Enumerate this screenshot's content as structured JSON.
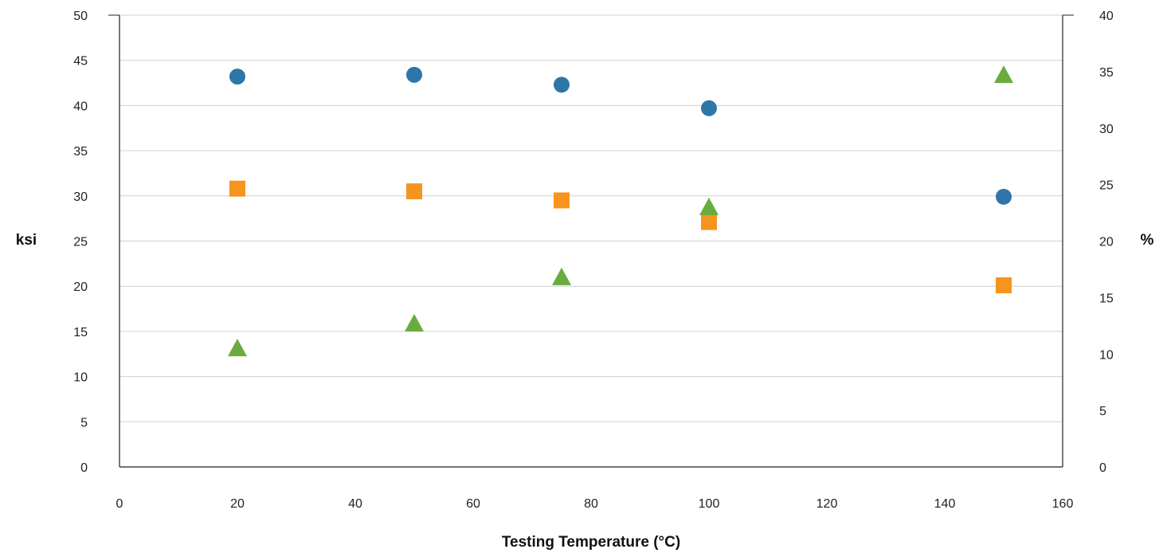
{
  "chart_data": {
    "type": "scatter",
    "title": "",
    "xlabel": "Testing Temperature (°C)",
    "ylabel_left": "ksi",
    "ylabel_right": "%",
    "xlim": [
      0,
      160
    ],
    "ylim_left": [
      0,
      50
    ],
    "ylim_right": [
      0,
      40
    ],
    "x_ticks": [
      "0",
      "20",
      "40",
      "60",
      "80",
      "100",
      "120",
      "140",
      "160"
    ],
    "y_left_ticks": [
      "0",
      "5",
      "10",
      "15",
      "20",
      "25",
      "30",
      "35",
      "40",
      "45",
      "50"
    ],
    "y_right_ticks": [
      "0",
      "5",
      "10",
      "15",
      "20",
      "25",
      "30",
      "35",
      "40"
    ],
    "grid": "horizontal",
    "legend": "none",
    "series": [
      {
        "marker": "circle",
        "color": "#2e75a8",
        "axis": "left",
        "points": [
          [
            20,
            43.2
          ],
          [
            50,
            43.4
          ],
          [
            75,
            42.3
          ],
          [
            100,
            39.7
          ],
          [
            150,
            29.9
          ]
        ]
      },
      {
        "marker": "square",
        "color": "#f7941d",
        "axis": "left",
        "points": [
          [
            20,
            30.8
          ],
          [
            50,
            30.5
          ],
          [
            75,
            29.5
          ],
          [
            100,
            27.1
          ],
          [
            150,
            20.1
          ]
        ]
      },
      {
        "marker": "triangle",
        "color": "#6aab3e",
        "axis": "right",
        "points": [
          [
            20,
            10.5
          ],
          [
            50,
            12.7
          ],
          [
            75,
            16.8
          ],
          [
            100,
            23.0
          ],
          [
            150,
            34.7
          ]
        ]
      }
    ]
  }
}
